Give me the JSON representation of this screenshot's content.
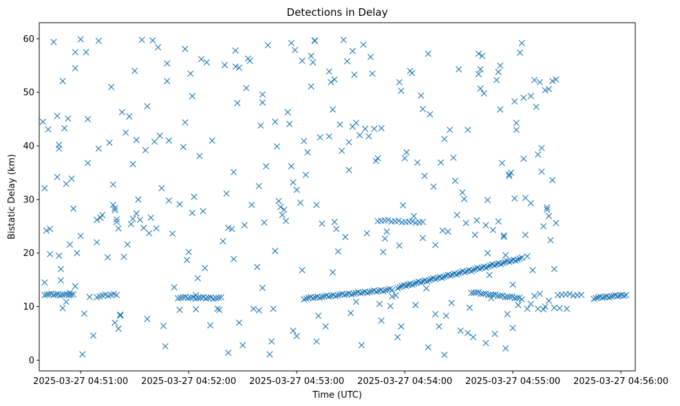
{
  "chart_data": {
    "type": "scatter",
    "title": "Detections in Delay",
    "xlabel": "Time (UTC)",
    "ylabel": "Bistatic Delay (km)",
    "marker": "x",
    "color": "#1f77b4",
    "xlim_seconds": [
      -23,
      308
    ],
    "ylim": [
      -2,
      63
    ],
    "x_tick_values": [
      0,
      60,
      120,
      180,
      240,
      300
    ],
    "x_tick_labels": [
      "2025-03-27 04:51:00",
      "2025-03-27 04:52:00",
      "2025-03-27 04:53:00",
      "2025-03-27 04:54:00",
      "2025-03-27 04:55:00",
      "2025-03-27 04:56:00"
    ],
    "y_tick_values": [
      0,
      10,
      20,
      30,
      40,
      50,
      60
    ],
    "y_tick_labels": [
      "0",
      "10",
      "20",
      "30",
      "40",
      "50",
      "60"
    ],
    "x_origin_time": "2025-03-27 04:51:00",
    "target_tracks": [
      {
        "name": "track-early",
        "x_start": -20,
        "x_end": -4,
        "y_start": 12.3,
        "y_end": 12.2,
        "count": 14
      },
      {
        "name": "track-mid-low",
        "x_start": 9,
        "x_end": 20,
        "y_start": 11.9,
        "y_end": 12.3,
        "count": 8
      },
      {
        "name": "track-flat-1",
        "x_start": 54,
        "x_end": 78,
        "y_start": 11.7,
        "y_end": 11.6,
        "count": 18
      },
      {
        "name": "track-rising",
        "x_start": 124,
        "x_end": 173,
        "y_start": 11.5,
        "y_end": 13.2,
        "count": 40
      },
      {
        "name": "track-climb",
        "x_start": 176,
        "x_end": 245,
        "y_start": 13.6,
        "y_end": 19.0,
        "count": 60
      },
      {
        "name": "track-plateau",
        "x_start": 165,
        "x_end": 190,
        "y_start": 26.1,
        "y_end": 25.7,
        "count": 14
      },
      {
        "name": "track-flat-2",
        "x_start": 217,
        "x_end": 245,
        "y_start": 12.7,
        "y_end": 11.5,
        "count": 22
      },
      {
        "name": "track-late",
        "x_start": 265,
        "x_end": 278,
        "y_start": 12.3,
        "y_end": 12.1,
        "count": 7
      },
      {
        "name": "track-end",
        "x_start": 285,
        "x_end": 303,
        "y_start": 11.6,
        "y_end": 12.2,
        "count": 16
      }
    ],
    "points": [
      [
        -21,
        44.5
      ],
      [
        -20,
        32.1
      ],
      [
        -19,
        24.2
      ],
      [
        -17,
        24.5
      ],
      [
        -18,
        43.1
      ],
      [
        -15,
        59.4
      ],
      [
        -13,
        45.6
      ],
      [
        -12,
        40.2
      ],
      [
        -12,
        39.5
      ],
      [
        -13,
        34.2
      ],
      [
        -10,
        52.1
      ],
      [
        -9,
        43.3
      ],
      [
        -8,
        32.9
      ],
      [
        -7,
        45.1
      ],
      [
        -6,
        21.6
      ],
      [
        -5,
        33.9
      ],
      [
        -4,
        28.3
      ],
      [
        -3,
        57.5
      ],
      [
        -3,
        54.5
      ],
      [
        0,
        59.9
      ],
      [
        3,
        57.5
      ],
      [
        4,
        36.8
      ],
      [
        4,
        45.0
      ],
      [
        -11,
        17.0
      ],
      [
        -11,
        14.9
      ],
      [
        -20,
        14.5
      ],
      [
        -17,
        19.8
      ],
      [
        -12,
        19.5
      ],
      [
        -8,
        10.9
      ],
      [
        -10,
        9.7
      ],
      [
        -6,
        12.6
      ],
      [
        -3,
        13.8
      ],
      [
        0,
        23.2
      ],
      [
        -2,
        20.0
      ],
      [
        2,
        8.7
      ],
      [
        1,
        1.1
      ],
      [
        5,
        11.8
      ],
      [
        7,
        4.6
      ],
      [
        9,
        22.0
      ],
      [
        9,
        26.2
      ],
      [
        10,
        39.5
      ],
      [
        12,
        27.1
      ],
      [
        11,
        26.6
      ],
      [
        10,
        59.6
      ],
      [
        15,
        19.2
      ],
      [
        16,
        40.6
      ],
      [
        17,
        51.0
      ],
      [
        18,
        29.0
      ],
      [
        18,
        32.8
      ],
      [
        19,
        28.4
      ],
      [
        19,
        28.0
      ],
      [
        20,
        25.8
      ],
      [
        21,
        24.6
      ],
      [
        20,
        26.3
      ],
      [
        19,
        7.0
      ],
      [
        21,
        5.9
      ],
      [
        22,
        8.5
      ],
      [
        22,
        8.3
      ],
      [
        23,
        46.3
      ],
      [
        24,
        19.3
      ],
      [
        25,
        42.5
      ],
      [
        27,
        45.5
      ],
      [
        26,
        21.6
      ],
      [
        28,
        25.4
      ],
      [
        29,
        26.4
      ],
      [
        29,
        36.6
      ],
      [
        30,
        54.0
      ],
      [
        31,
        27.4
      ],
      [
        31,
        41.1
      ],
      [
        32,
        30.0
      ],
      [
        33,
        26.2
      ],
      [
        34,
        59.8
      ],
      [
        35,
        24.7
      ],
      [
        36,
        39.2
      ],
      [
        37,
        47.4
      ],
      [
        37,
        7.7
      ],
      [
        38,
        23.7
      ],
      [
        39,
        26.6
      ],
      [
        40,
        59.7
      ],
      [
        41,
        40.8
      ],
      [
        42,
        24.6
      ],
      [
        43,
        58.4
      ],
      [
        44,
        41.9
      ],
      [
        45,
        32.1
      ],
      [
        46,
        6.4
      ],
      [
        47,
        2.6
      ],
      [
        48,
        52.1
      ],
      [
        48,
        55.4
      ],
      [
        49,
        29.8
      ],
      [
        49,
        41.0
      ],
      [
        51,
        23.6
      ],
      [
        52,
        13.6
      ],
      [
        55,
        29.1
      ],
      [
        55,
        9.4
      ],
      [
        57,
        39.8
      ],
      [
        58,
        58.1
      ],
      [
        58,
        44.4
      ],
      [
        59,
        18.7
      ],
      [
        60,
        20.2
      ],
      [
        61,
        53.5
      ],
      [
        62,
        49.3
      ],
      [
        62,
        27.5
      ],
      [
        63,
        30.5
      ],
      [
        64,
        9.5
      ],
      [
        64,
        12.1
      ],
      [
        65,
        15.3
      ],
      [
        66,
        38.1
      ],
      [
        67,
        56.2
      ],
      [
        68,
        27.8
      ],
      [
        69,
        17.2
      ],
      [
        70,
        55.6
      ],
      [
        72,
        6.5
      ],
      [
        73,
        41.0
      ],
      [
        76,
        9.6
      ],
      [
        77,
        9.4
      ],
      [
        79,
        22.2
      ],
      [
        80,
        55.1
      ],
      [
        81,
        31.1
      ],
      [
        82,
        24.7
      ],
      [
        82,
        1.4
      ],
      [
        84,
        24.5
      ],
      [
        85,
        35.1
      ],
      [
        85,
        18.9
      ],
      [
        86,
        57.8
      ],
      [
        86,
        54.8
      ],
      [
        87,
        48.0
      ],
      [
        88,
        54.6
      ],
      [
        88,
        7.0
      ],
      [
        90,
        2.8
      ],
      [
        91,
        25.2
      ],
      [
        92,
        50.8
      ],
      [
        93,
        56.3
      ],
      [
        94,
        55.9
      ],
      [
        95,
        29.0
      ],
      [
        96,
        9.6
      ],
      [
        98,
        17.4
      ],
      [
        99,
        32.5
      ],
      [
        99,
        9.3
      ],
      [
        100,
        43.8
      ],
      [
        101,
        49.6
      ],
      [
        101,
        48.1
      ],
      [
        101,
        13.5
      ],
      [
        102,
        25.7
      ],
      [
        103,
        36.2
      ],
      [
        104,
        58.8
      ],
      [
        105,
        1.1
      ],
      [
        106,
        3.5
      ],
      [
        107,
        9.6
      ],
      [
        108,
        44.5
      ],
      [
        108,
        20.4
      ],
      [
        109,
        39.9
      ],
      [
        110,
        29.7
      ],
      [
        111,
        28.6
      ],
      [
        112,
        27.1
      ],
      [
        113,
        28.1
      ],
      [
        114,
        26.0
      ],
      [
        115,
        46.3
      ],
      [
        116,
        44.1
      ],
      [
        117,
        59.2
      ],
      [
        117,
        36.2
      ],
      [
        118,
        33.2
      ],
      [
        118,
        5.5
      ],
      [
        119,
        57.9
      ],
      [
        120,
        31.8
      ],
      [
        120,
        4.5
      ],
      [
        122,
        29.4
      ],
      [
        123,
        55.9
      ],
      [
        123,
        16.8
      ],
      [
        124,
        40.9
      ],
      [
        125,
        34.6
      ],
      [
        126,
        38.8
      ],
      [
        128,
        56.8
      ],
      [
        129,
        55.6
      ],
      [
        128,
        51.1
      ],
      [
        130,
        59.6
      ],
      [
        130,
        59.7
      ],
      [
        131,
        29.0
      ],
      [
        132,
        8.3
      ],
      [
        131,
        3.5
      ],
      [
        133,
        41.6
      ],
      [
        134,
        25.5
      ],
      [
        136,
        6.3
      ],
      [
        138,
        41.8
      ],
      [
        138,
        53.9
      ],
      [
        139,
        51.9
      ],
      [
        140,
        46.8
      ],
      [
        140,
        16.4
      ],
      [
        141,
        52.4
      ],
      [
        141,
        25.8
      ],
      [
        142,
        24.5
      ],
      [
        143,
        20.3
      ],
      [
        144,
        44.0
      ],
      [
        145,
        39.1
      ],
      [
        146,
        59.8
      ],
      [
        147,
        23.0
      ],
      [
        148,
        55.8
      ],
      [
        149,
        35.5
      ],
      [
        149,
        40.7
      ],
      [
        150,
        8.8
      ],
      [
        151,
        57.7
      ],
      [
        151,
        43.6
      ],
      [
        152,
        53.3
      ],
      [
        153,
        44.3
      ],
      [
        153,
        10.9
      ],
      [
        155,
        42.0
      ],
      [
        156,
        2.8
      ],
      [
        157,
        58.9
      ],
      [
        158,
        43.2
      ],
      [
        159,
        23.7
      ],
      [
        160,
        41.8
      ],
      [
        161,
        56.6
      ],
      [
        162,
        53.5
      ],
      [
        163,
        43.2
      ],
      [
        164,
        37.2
      ],
      [
        165,
        37.7
      ],
      [
        166,
        10.5
      ],
      [
        167,
        43.3
      ],
      [
        167,
        7.4
      ],
      [
        168,
        20.2
      ],
      [
        169,
        22.7
      ],
      [
        170,
        24.0
      ],
      [
        172,
        10.1
      ],
      [
        173,
        11.9
      ],
      [
        175,
        12.1
      ],
      [
        176,
        4.3
      ],
      [
        177,
        51.9
      ],
      [
        177,
        21.4
      ],
      [
        178,
        50.3
      ],
      [
        178,
        6.3
      ],
      [
        179,
        28.9
      ],
      [
        180,
        37.7
      ],
      [
        181,
        38.8
      ],
      [
        182,
        14.1
      ],
      [
        183,
        54.0
      ],
      [
        184,
        53.6
      ],
      [
        185,
        26.9
      ],
      [
        186,
        10.3
      ],
      [
        187,
        36.9
      ],
      [
        189,
        49.4
      ],
      [
        190,
        46.9
      ],
      [
        190,
        22.8
      ],
      [
        191,
        34.4
      ],
      [
        192,
        13.4
      ],
      [
        193,
        57.2
      ],
      [
        193,
        2.4
      ],
      [
        194,
        45.9
      ],
      [
        196,
        32.4
      ],
      [
        197,
        21.5
      ],
      [
        197,
        8.6
      ],
      [
        199,
        6.3
      ],
      [
        200,
        36.9
      ],
      [
        201,
        24.2
      ],
      [
        202,
        41.3
      ],
      [
        202,
        1.0
      ],
      [
        203,
        8.3
      ],
      [
        204,
        24.0
      ],
      [
        205,
        43.0
      ],
      [
        206,
        10.7
      ],
      [
        207,
        37.8
      ],
      [
        208,
        33.5
      ],
      [
        209,
        27.1
      ],
      [
        210,
        54.3
      ],
      [
        211,
        5.5
      ],
      [
        212,
        31.3
      ],
      [
        213,
        30.1
      ],
      [
        214,
        25.6
      ],
      [
        215,
        43.0
      ],
      [
        215,
        5.1
      ],
      [
        216,
        9.8
      ],
      [
        218,
        4.3
      ],
      [
        219,
        23.4
      ],
      [
        220,
        26.1
      ],
      [
        221,
        57.2
      ],
      [
        221,
        53.4
      ],
      [
        222,
        54.3
      ],
      [
        222,
        50.7
      ],
      [
        223,
        56.8
      ],
      [
        224,
        49.8
      ],
      [
        225,
        25.2
      ],
      [
        225,
        3.2
      ],
      [
        226,
        29.9
      ],
      [
        226,
        20.0
      ],
      [
        227,
        15.9
      ],
      [
        228,
        11.6
      ],
      [
        229,
        24.3
      ],
      [
        230,
        4.9
      ],
      [
        231,
        52.3
      ],
      [
        232,
        53.8
      ],
      [
        232,
        25.9
      ],
      [
        233,
        55.0
      ],
      [
        233,
        46.8
      ],
      [
        234,
        36.8
      ],
      [
        235,
        23.3
      ],
      [
        235,
        23.0
      ],
      [
        236,
        19.6
      ],
      [
        236,
        2.2
      ],
      [
        237,
        8.6
      ],
      [
        238,
        34.7
      ],
      [
        238,
        34.4
      ],
      [
        239,
        35.0
      ],
      [
        240,
        14.1
      ],
      [
        240,
        6.0
      ],
      [
        241,
        48.3
      ],
      [
        241,
        30.2
      ],
      [
        242,
        44.3
      ],
      [
        242,
        43.0
      ],
      [
        243,
        10.3
      ],
      [
        244,
        57.4
      ],
      [
        245,
        59.2
      ],
      [
        246,
        49.0
      ],
      [
        246,
        37.6
      ],
      [
        247,
        23.4
      ],
      [
        247,
        30.3
      ],
      [
        248,
        19.4
      ],
      [
        250,
        49.3
      ],
      [
        250,
        29.3
      ],
      [
        251,
        16.8
      ],
      [
        252,
        52.3
      ],
      [
        253,
        47.3
      ],
      [
        254,
        38.4
      ],
      [
        255,
        51.9
      ],
      [
        256,
        39.6
      ],
      [
        256,
        35.2
      ],
      [
        257,
        25.0
      ],
      [
        258,
        50.4
      ],
      [
        259,
        28.5
      ],
      [
        259,
        28.1
      ],
      [
        260,
        50.6
      ],
      [
        260,
        26.9
      ],
      [
        261,
        22.4
      ],
      [
        262,
        52.1
      ],
      [
        262,
        33.6
      ],
      [
        263,
        17.0
      ],
      [
        264,
        52.4
      ],
      [
        264,
        25.6
      ],
      [
        254,
        9.6
      ],
      [
        257,
        9.5
      ],
      [
        258,
        10.0
      ],
      [
        250,
        10.5
      ],
      [
        252,
        12.0
      ],
      [
        248,
        9.6
      ],
      [
        255,
        12.4
      ],
      [
        260,
        11.1
      ],
      [
        263,
        9.8
      ],
      [
        266,
        9.7
      ],
      [
        270,
        9.6
      ]
    ]
  }
}
